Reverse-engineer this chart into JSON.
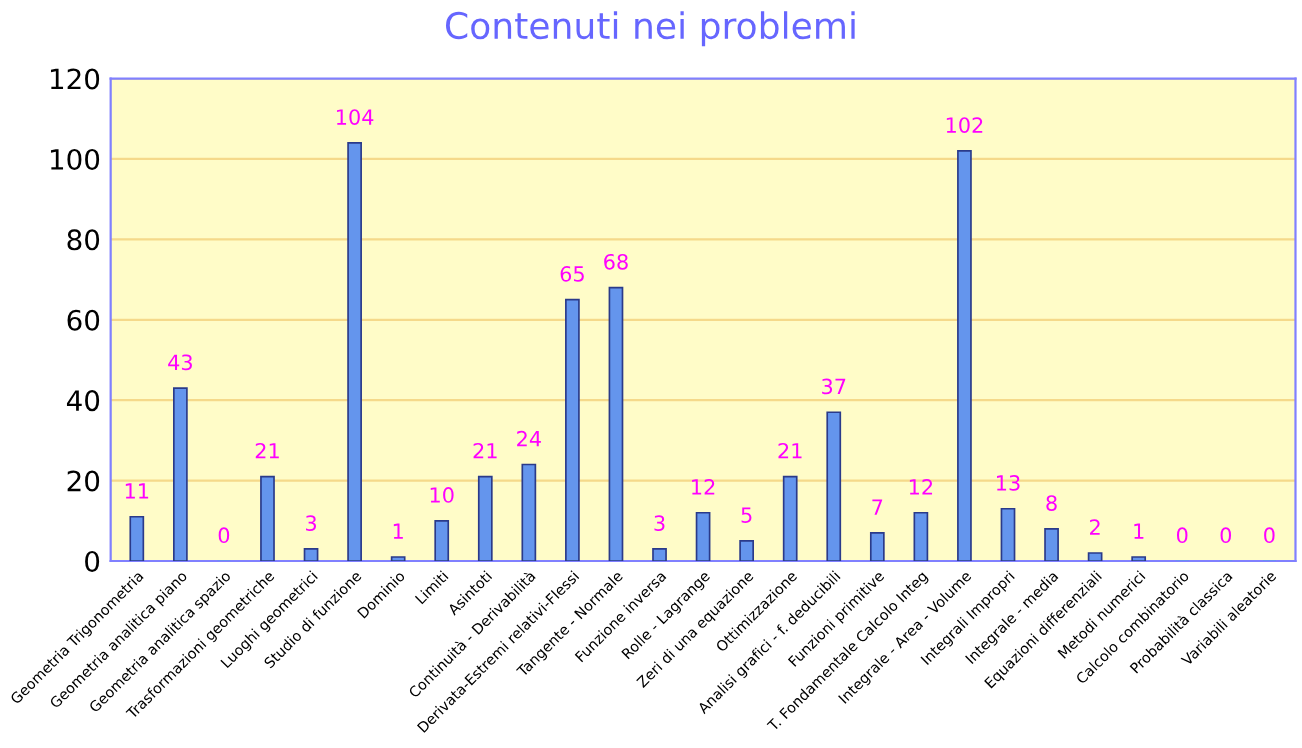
{
  "chart_data": {
    "type": "bar",
    "title": "Contenuti nei problemi",
    "categories": [
      "Geometria Trigonometria",
      "Geometria analitica piano",
      "Geometria analitica spazio",
      "Trasformazioni geometriche",
      "Luoghi geometrici",
      "Studio di funzione",
      "Dominio",
      "Limiti",
      "Asintoti",
      "Continuità - Derivabilità",
      "Derivata-Estremi relativi-Flessi",
      "Tangente - Normale",
      "Funzione inversa",
      "Rolle - Lagrange",
      "Zeri di una equazione",
      "Ottimizzazione",
      "Analisi grafici - f. deducibili",
      "Funzioni primitive",
      "T. Fondamentale Calcolo Integ",
      "Integrale - Area - Volume",
      "Integrali Impropri",
      "Integrale - media",
      "Equazioni differenziali",
      "Metodi numerici",
      "Calcolo combinatorio",
      "Probabilità classica",
      "Variabili aleatorie"
    ],
    "values": [
      11,
      43,
      0,
      21,
      3,
      104,
      1,
      10,
      21,
      24,
      65,
      68,
      3,
      12,
      5,
      21,
      37,
      7,
      12,
      102,
      13,
      8,
      2,
      1,
      0,
      0,
      0
    ],
    "color": "#6495ed",
    "ylim": [
      0,
      120
    ],
    "yticks": [
      0,
      20,
      40,
      60,
      80,
      100,
      120
    ],
    "grid": "y",
    "data_labels": true
  }
}
